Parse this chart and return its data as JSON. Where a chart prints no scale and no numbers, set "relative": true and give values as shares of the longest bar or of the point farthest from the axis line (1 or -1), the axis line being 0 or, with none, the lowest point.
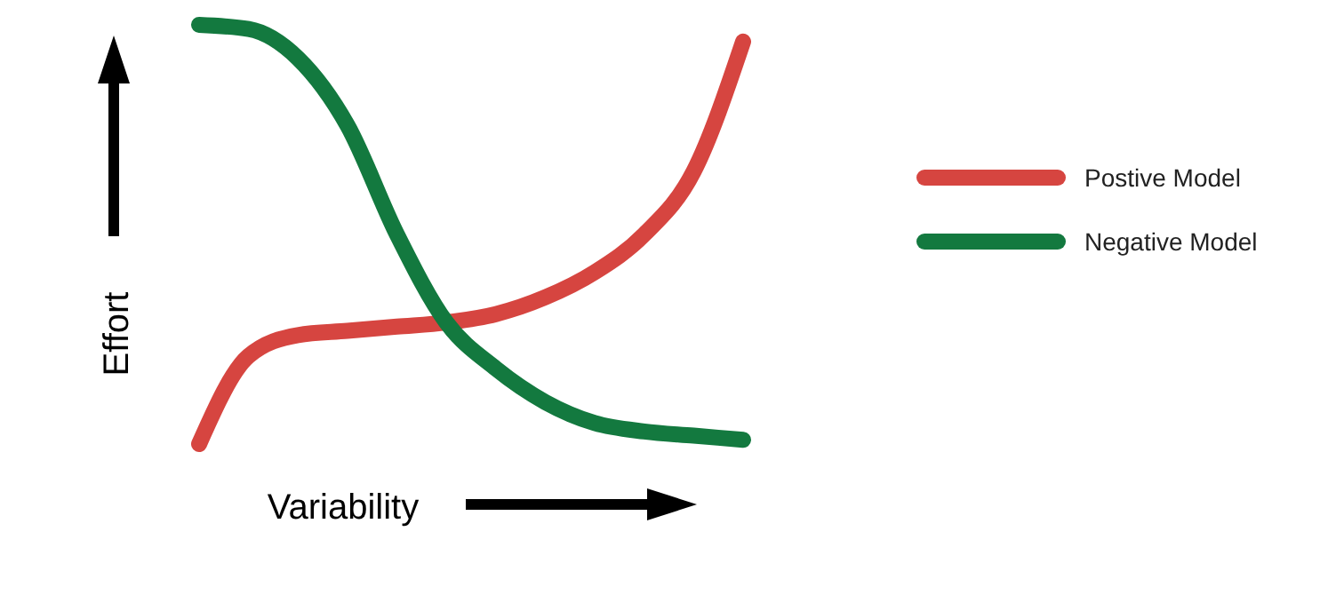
{
  "chart_data": {
    "type": "line",
    "relative": true,
    "xlabel": "Variability",
    "ylabel": "Effort",
    "legend": "right",
    "categories": [
      null,
      null,
      null,
      null,
      null,
      null,
      null,
      null,
      null,
      null,
      null,
      null
    ],
    "series": [
      {
        "name": "Postive Model",
        "color": "#d64540",
        "values": [
          0,
          0.21,
          0.26,
          0.27,
          0.28,
          0.29,
          0.31,
          0.35,
          0.41,
          0.5,
          0.65,
          0.96
        ]
      },
      {
        "name": "Negative Model",
        "color": "#13793f",
        "values": [
          1,
          0.99,
          0.92,
          0.76,
          0.5,
          0.29,
          0.18,
          0.1,
          0.05,
          0.03,
          0.02,
          0.01
        ]
      }
    ]
  }
}
